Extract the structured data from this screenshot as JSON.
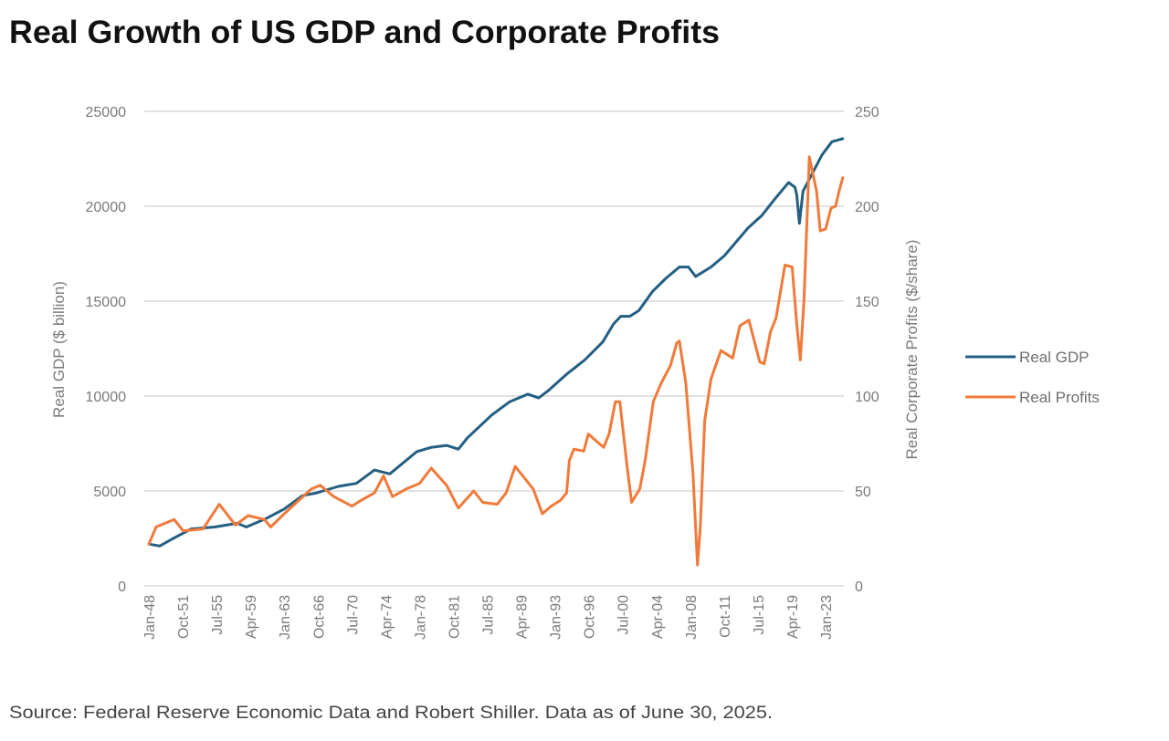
{
  "chart_data": {
    "type": "line",
    "title": "Real Growth of US GDP and Corporate Profits",
    "source": "Source: Federal Reserve Economic Data and Robert Shiller. Data as of June 30, 2025.",
    "xlabel": "",
    "ylabel_left": "Real GDP ($ billion)",
    "ylabel_right": "Real Corporate Profits ($/share)",
    "ylim_left": [
      0,
      25000
    ],
    "ylim_right": [
      0,
      250
    ],
    "yticks_left": [
      "0",
      "5000",
      "10000",
      "15000",
      "20000",
      "25000"
    ],
    "yticks_right": [
      "0",
      "50",
      "100",
      "150",
      "200",
      "250"
    ],
    "xticks": [
      "Jan-48",
      "Oct-51",
      "Jul-55",
      "Apr-59",
      "Jan-63",
      "Oct-66",
      "Jul-70",
      "Apr-74",
      "Jan-78",
      "Oct-81",
      "Jul-85",
      "Apr-89",
      "Jan-93",
      "Oct-96",
      "Jul-00",
      "Apr-04",
      "Jan-08",
      "Oct-11",
      "Jul-15",
      "Apr-19",
      "Jan-23"
    ],
    "grid": true,
    "legend_position": "right",
    "series": [
      {
        "name": "Real GDP",
        "axis": "left",
        "color": "#235f82",
        "points": [
          [
            1948.0,
            2200
          ],
          [
            1949.2,
            2100
          ],
          [
            1950.7,
            2500
          ],
          [
            1952.7,
            3000
          ],
          [
            1955.3,
            3100
          ],
          [
            1957.8,
            3300
          ],
          [
            1958.8,
            3100
          ],
          [
            1961.0,
            3550
          ],
          [
            1963.0,
            4050
          ],
          [
            1965.0,
            4750
          ],
          [
            1966.6,
            4900
          ],
          [
            1969.0,
            5240
          ],
          [
            1971.0,
            5400
          ],
          [
            1973.0,
            6100
          ],
          [
            1974.7,
            5900
          ],
          [
            1977.7,
            7070
          ],
          [
            1979.3,
            7300
          ],
          [
            1981.0,
            7400
          ],
          [
            1982.3,
            7200
          ],
          [
            1983.3,
            7800
          ],
          [
            1986.0,
            9000
          ],
          [
            1988.0,
            9700
          ],
          [
            1990.0,
            10100
          ],
          [
            1991.2,
            9900
          ],
          [
            1992.3,
            10300
          ],
          [
            1994.3,
            11150
          ],
          [
            1996.3,
            11900
          ],
          [
            1998.3,
            12850
          ],
          [
            1999.5,
            13800
          ],
          [
            2000.3,
            14200
          ],
          [
            2001.3,
            14200
          ],
          [
            2002.3,
            14500
          ],
          [
            2003.8,
            15500
          ],
          [
            2005.3,
            16200
          ],
          [
            2006.8,
            16800
          ],
          [
            2007.8,
            16800
          ],
          [
            2008.6,
            16300
          ],
          [
            2010.3,
            16800
          ],
          [
            2011.8,
            17400
          ],
          [
            2013.4,
            18300
          ],
          [
            2014.4,
            18850
          ],
          [
            2015.9,
            19500
          ],
          [
            2017.4,
            20400
          ],
          [
            2018.9,
            21250
          ],
          [
            2019.6,
            21000
          ],
          [
            2019.8,
            20600
          ],
          [
            2020.1,
            19100
          ],
          [
            2020.5,
            20800
          ],
          [
            2021.5,
            21700
          ],
          [
            2022.6,
            22700
          ],
          [
            2023.7,
            23400
          ],
          [
            2024.9,
            23560
          ]
        ]
      },
      {
        "name": "Real Profits",
        "axis": "right",
        "color": "#f07a3a",
        "points": [
          [
            1948.0,
            22
          ],
          [
            1948.8,
            31
          ],
          [
            1950.8,
            35
          ],
          [
            1951.8,
            29
          ],
          [
            1954.0,
            30
          ],
          [
            1955.8,
            43
          ],
          [
            1957.6,
            32
          ],
          [
            1959.0,
            37
          ],
          [
            1960.8,
            35
          ],
          [
            1961.5,
            31
          ],
          [
            1963.0,
            38
          ],
          [
            1966.0,
            51
          ],
          [
            1967.0,
            53
          ],
          [
            1968.5,
            47
          ],
          [
            1970.5,
            42
          ],
          [
            1971.5,
            45
          ],
          [
            1973.0,
            49
          ],
          [
            1974.0,
            58
          ],
          [
            1975.0,
            47
          ],
          [
            1976.5,
            51
          ],
          [
            1978.0,
            54
          ],
          [
            1979.3,
            62
          ],
          [
            1981.0,
            53
          ],
          [
            1982.3,
            41
          ],
          [
            1984.0,
            50
          ],
          [
            1985.0,
            44
          ],
          [
            1986.6,
            43
          ],
          [
            1987.6,
            49
          ],
          [
            1988.6,
            63
          ],
          [
            1990.6,
            51
          ],
          [
            1991.6,
            38
          ],
          [
            1992.6,
            42
          ],
          [
            1993.6,
            45
          ],
          [
            1994.3,
            49
          ],
          [
            1994.6,
            66
          ],
          [
            1995.1,
            72
          ],
          [
            1996.2,
            71
          ],
          [
            1996.7,
            80
          ],
          [
            1998.4,
            73
          ],
          [
            1999.0,
            80
          ],
          [
            1999.7,
            97
          ],
          [
            2000.2,
            97
          ],
          [
            2001.0,
            63
          ],
          [
            2001.5,
            44
          ],
          [
            2002.4,
            51
          ],
          [
            2003.0,
            66
          ],
          [
            2003.9,
            97
          ],
          [
            2004.8,
            107
          ],
          [
            2005.8,
            116
          ],
          [
            2006.5,
            128
          ],
          [
            2006.8,
            129
          ],
          [
            2007.5,
            107
          ],
          [
            2008.3,
            59
          ],
          [
            2008.8,
            11
          ],
          [
            2009.1,
            30
          ],
          [
            2009.6,
            87
          ],
          [
            2010.3,
            109
          ],
          [
            2011.4,
            124
          ],
          [
            2012.7,
            120
          ],
          [
            2013.5,
            137
          ],
          [
            2014.5,
            140
          ],
          [
            2015.7,
            118
          ],
          [
            2016.2,
            117
          ],
          [
            2016.9,
            134
          ],
          [
            2017.5,
            141
          ],
          [
            2018.5,
            169
          ],
          [
            2019.3,
            168
          ],
          [
            2019.8,
            138
          ],
          [
            2020.2,
            119
          ],
          [
            2020.6,
            150
          ],
          [
            2021.2,
            226
          ],
          [
            2022.0,
            208
          ],
          [
            2022.4,
            187
          ],
          [
            2023.0,
            188
          ],
          [
            2023.6,
            199
          ],
          [
            2024.1,
            200
          ],
          [
            2024.5,
            208
          ],
          [
            2024.9,
            215
          ]
        ]
      }
    ]
  }
}
